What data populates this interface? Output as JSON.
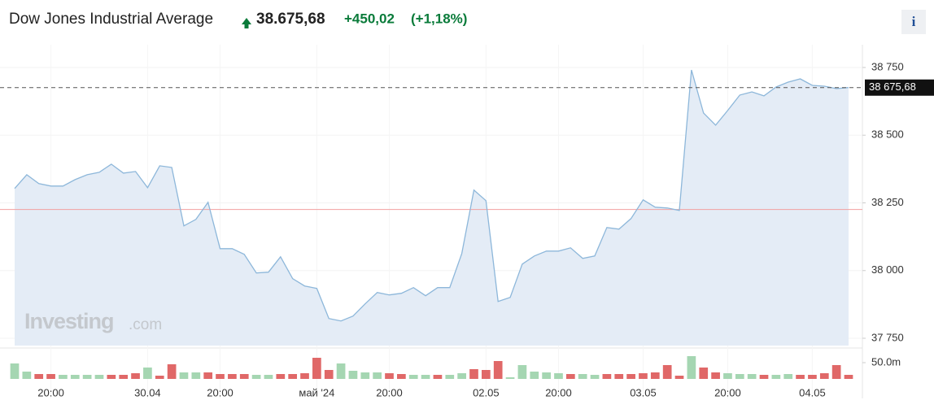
{
  "header": {
    "title": "Dow Jones Industrial Average",
    "price": "38.675,68",
    "change": "+450,02",
    "change_pct": "(+1,18%)",
    "info": "i"
  },
  "watermark": {
    "brand": "Investing",
    "suffix": ".com"
  },
  "chart_data": [
    {
      "type": "area",
      "color": "#8db7da",
      "fill": "#e4ecf6",
      "grid": true,
      "categories": [
        null,
        null,
        null,
        "20:00",
        null,
        null,
        null,
        null,
        null,
        null,
        null,
        "30.04",
        null,
        null,
        null,
        null,
        null,
        "20:00",
        null,
        null,
        null,
        null,
        null,
        null,
        null,
        "май '24",
        null,
        null,
        null,
        null,
        null,
        "20:00",
        null,
        null,
        null,
        null,
        null,
        null,
        null,
        "02.05",
        null,
        null,
        null,
        null,
        null,
        "20:00",
        null,
        null,
        null,
        null,
        null,
        null,
        "03.05",
        null,
        null,
        null,
        null,
        null,
        null,
        "20:00",
        null,
        null,
        null,
        null,
        null,
        null,
        "04.05",
        null,
        null,
        null
      ],
      "values": [
        38303,
        38354,
        38321,
        38312,
        38312,
        38336,
        38354,
        38363,
        38393,
        38360,
        38366,
        38306,
        38387,
        38381,
        38165,
        38189,
        38252,
        38081,
        38081,
        38060,
        37991,
        37994,
        38051,
        37970,
        37943,
        37934,
        37823,
        37814,
        37832,
        37877,
        37919,
        37910,
        37916,
        37937,
        37907,
        37937,
        37937,
        38063,
        38297,
        38258,
        37886,
        37901,
        38024,
        38054,
        38072,
        38072,
        38084,
        38045,
        38054,
        38159,
        38153,
        38192,
        38261,
        38234,
        38231,
        38222,
        38741,
        38582,
        38537,
        38591,
        38648,
        38660,
        38645,
        38678,
        38696,
        38708,
        38684,
        38681,
        38672,
        38675.68
      ],
      "ylim": [
        37723,
        38825
      ],
      "yticks": [
        {
          "value": 37750,
          "label": "37 750"
        },
        {
          "value": 38000,
          "label": "38 000"
        },
        {
          "value": 38250,
          "label": "38 250"
        },
        {
          "value": 38500,
          "label": "38 500"
        },
        {
          "value": 38750,
          "label": "38 750"
        }
      ],
      "last_price": {
        "value": 38675.68,
        "label": "38 675,68"
      },
      "reference_line": {
        "value": 38225.66,
        "color": "#f2a0a0"
      }
    },
    {
      "type": "bar",
      "values": [
        47.5,
        22.5,
        15,
        15,
        12.5,
        12.5,
        12.5,
        12.5,
        12.5,
        12.5,
        17.5,
        35,
        10,
        45,
        20,
        20,
        20,
        15,
        15,
        15,
        12.5,
        12.5,
        15,
        15,
        17.5,
        65,
        27.5,
        47.5,
        25,
        20,
        20,
        17.5,
        15,
        12.5,
        12.5,
        12.5,
        12.5,
        17.5,
        30,
        27.5,
        55,
        5,
        42.5,
        22.5,
        20,
        17.5,
        15,
        15,
        12.5,
        15,
        15,
        15,
        17.5,
        20,
        42.5,
        10,
        70,
        35,
        20,
        17.5,
        15,
        15,
        12.5,
        12.5,
        15,
        12.5,
        12.5,
        17.5,
        42.5,
        12.5
      ],
      "colors": [
        "#a5d6b2",
        "#a5d6b2",
        "#e06868",
        "#e06868",
        "#a5d6b2",
        "#a5d6b2",
        "#a5d6b2",
        "#a5d6b2",
        "#e06868",
        "#e06868",
        "#e06868",
        "#a5d6b2",
        "#e06868",
        "#e06868",
        "#a5d6b2",
        "#a5d6b2",
        "#e06868",
        "#e06868",
        "#e06868",
        "#e06868",
        "#a5d6b2",
        "#a5d6b2",
        "#e06868",
        "#e06868",
        "#e06868",
        "#e06868",
        "#e06868",
        "#a5d6b2",
        "#a5d6b2",
        "#a5d6b2",
        "#a5d6b2",
        "#e06868",
        "#e06868",
        "#a5d6b2",
        "#a5d6b2",
        "#e06868",
        "#a5d6b2",
        "#a5d6b2",
        "#e06868",
        "#e06868",
        "#e06868",
        "#a5d6b2",
        "#a5d6b2",
        "#a5d6b2",
        "#a5d6b2",
        "#a5d6b2",
        "#e06868",
        "#a5d6b2",
        "#a5d6b2",
        "#e06868",
        "#e06868",
        "#e06868",
        "#e06868",
        "#e06868",
        "#e06868",
        "#e06868",
        "#a5d6b2",
        "#e06868",
        "#e06868",
        "#a5d6b2",
        "#a5d6b2",
        "#a5d6b2",
        "#e06868",
        "#a5d6b2",
        "#a5d6b2",
        "#e06868",
        "#e06868",
        "#e06868",
        "#e06868",
        "#e06868"
      ],
      "ylim": [
        0,
        70
      ],
      "yticks": [
        {
          "value": 50,
          "label": "50.0m"
        }
      ]
    }
  ]
}
